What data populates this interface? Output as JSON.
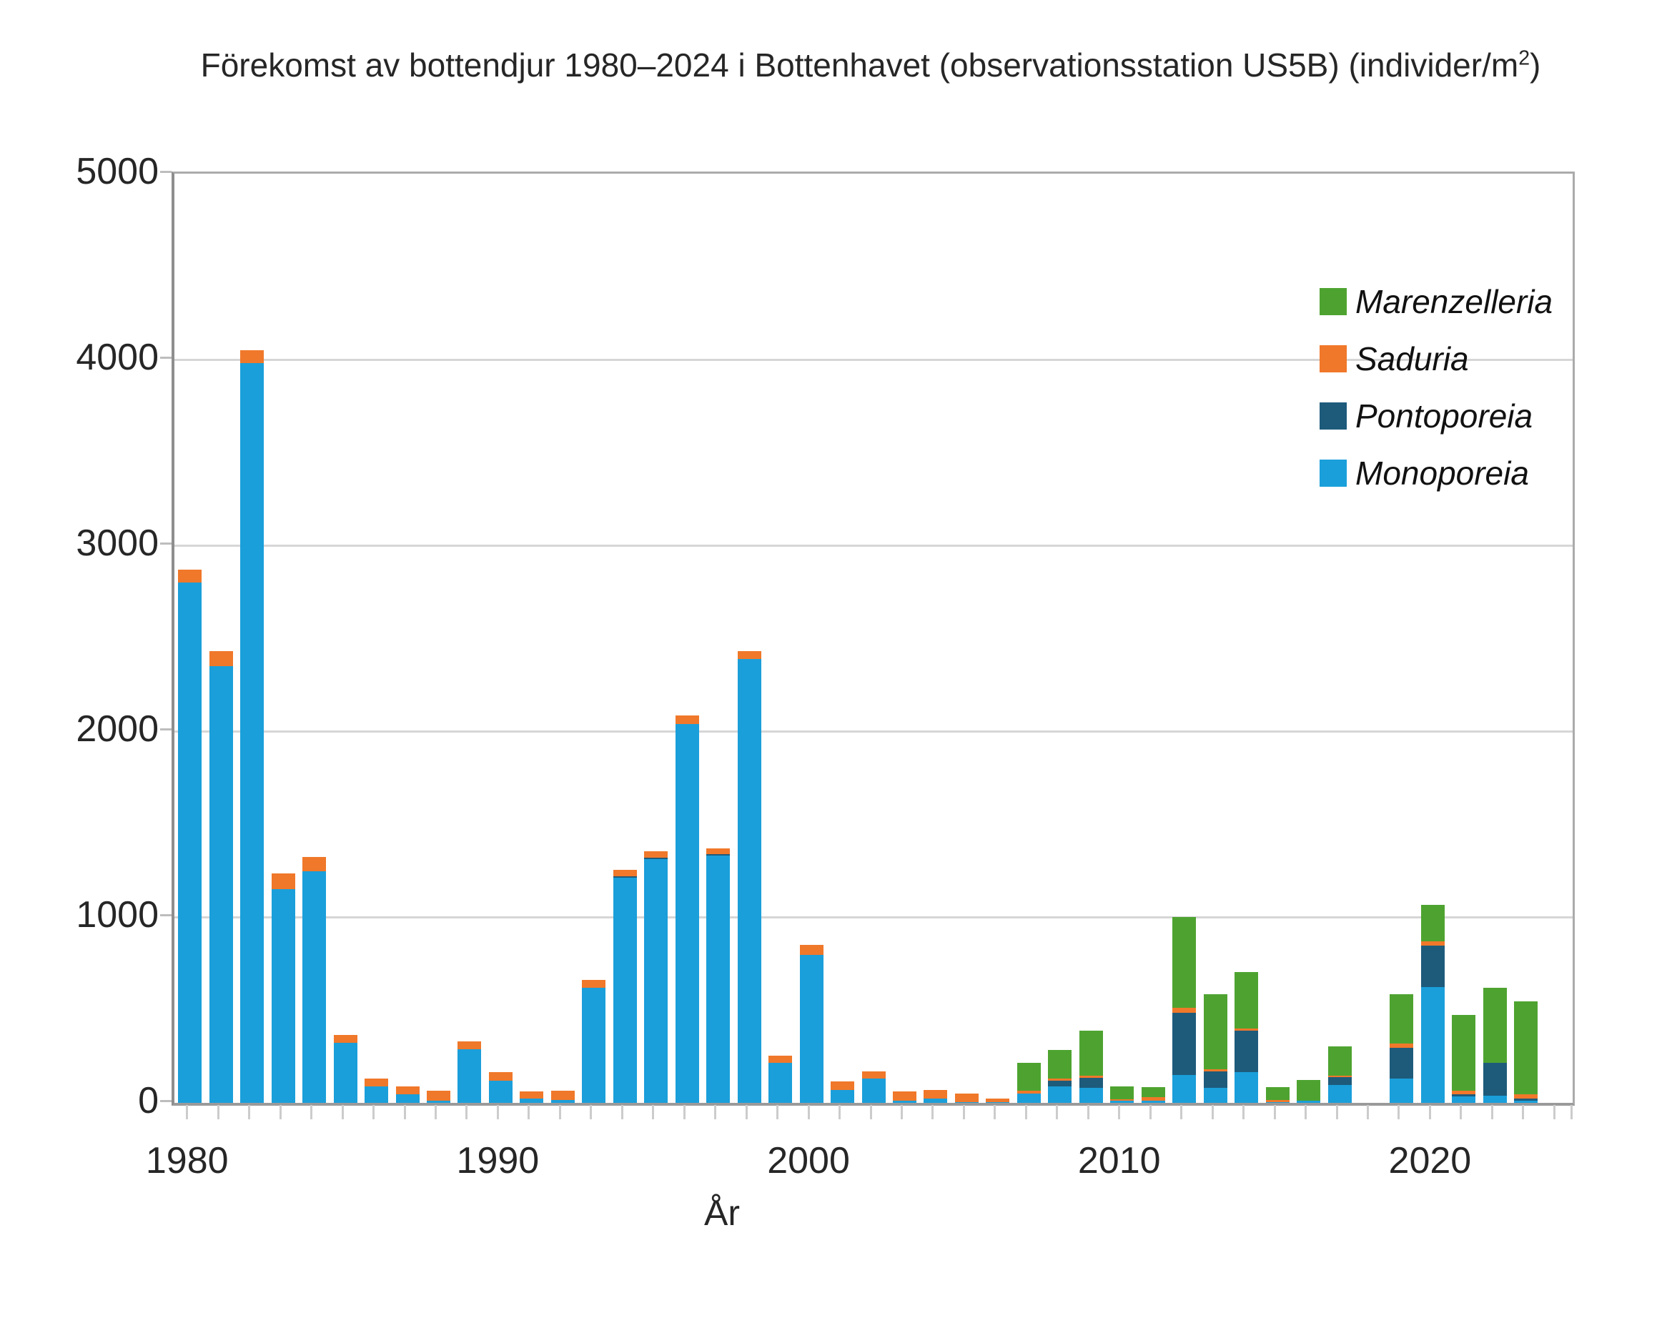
{
  "title": {
    "prefix": "Förekomst av bottendjur 1980–2024 i Bottenhavet (observationsstation US5B) (individer/m",
    "sup": "2",
    "suffix": ")"
  },
  "chart_data": {
    "type": "bar",
    "stacked": true,
    "title": "Förekomst av bottendjur 1980–2024 i Bottenhavet (observationsstation US5B) (individer/m2)",
    "xlabel": "År",
    "ylabel": "",
    "ylim": [
      0,
      5000
    ],
    "y_ticks": [
      0,
      1000,
      2000,
      3000,
      4000,
      5000
    ],
    "x_tick_labels": [
      "1980",
      "1990",
      "2000",
      "2010",
      "2020"
    ],
    "grid": "horizontal",
    "legend_position": "inside-top-right",
    "categories": [
      1980,
      1981,
      1982,
      1983,
      1984,
      1985,
      1986,
      1987,
      1988,
      1989,
      1990,
      1991,
      1992,
      1993,
      1994,
      1995,
      1996,
      1997,
      1998,
      1999,
      2000,
      2001,
      2002,
      2003,
      2004,
      2005,
      2006,
      2007,
      2008,
      2009,
      2010,
      2011,
      2012,
      2013,
      2014,
      2015,
      2016,
      2017,
      2018,
      2019,
      2020,
      2021,
      2022,
      2023,
      2024
    ],
    "series": [
      {
        "name": "Monoporeia",
        "color": "#1A9FDA",
        "values": [
          2800,
          2350,
          3980,
          1150,
          1245,
          325,
          90,
          45,
          10,
          290,
          120,
          25,
          15,
          620,
          1210,
          1310,
          2040,
          1330,
          2390,
          215,
          795,
          70,
          130,
          10,
          25,
          5,
          5,
          50,
          90,
          80,
          10,
          10,
          150,
          80,
          165,
          5,
          10,
          95,
          0,
          130,
          625,
          35,
          40,
          10,
          0
        ]
      },
      {
        "name": "Pontoporeia",
        "color": "#1E5B7B",
        "values": [
          0,
          0,
          0,
          0,
          0,
          0,
          0,
          0,
          0,
          0,
          0,
          0,
          0,
          0,
          10,
          10,
          0,
          10,
          0,
          0,
          0,
          0,
          0,
          0,
          0,
          0,
          0,
          0,
          30,
          55,
          0,
          0,
          335,
          90,
          225,
          0,
          0,
          45,
          0,
          165,
          220,
          10,
          175,
          15,
          0
        ]
      },
      {
        "name": "Saduria",
        "color": "#F0782A",
        "values": [
          70,
          80,
          70,
          85,
          80,
          40,
          40,
          45,
          55,
          40,
          45,
          35,
          50,
          40,
          35,
          35,
          45,
          30,
          40,
          40,
          55,
          45,
          40,
          50,
          45,
          45,
          20,
          15,
          10,
          10,
          10,
          20,
          25,
          10,
          10,
          10,
          0,
          5,
          0,
          25,
          25,
          20,
          0,
          20,
          0
        ]
      },
      {
        "name": "Marenzelleria",
        "color": "#4EA330",
        "values": [
          0,
          0,
          0,
          0,
          0,
          0,
          0,
          0,
          0,
          0,
          0,
          0,
          0,
          0,
          0,
          0,
          0,
          0,
          0,
          0,
          0,
          0,
          0,
          0,
          0,
          0,
          0,
          150,
          155,
          245,
          70,
          55,
          490,
          405,
          305,
          70,
          115,
          160,
          0,
          265,
          195,
          410,
          405,
          500,
          0
        ]
      }
    ],
    "legend": [
      {
        "label": "Marenzelleria",
        "color": "#4EA330"
      },
      {
        "label": "Saduria",
        "color": "#F0782A"
      },
      {
        "label": "Pontoporeia",
        "color": "#1E5B7B"
      },
      {
        "label": "Monoporeia",
        "color": "#1A9FDA"
      }
    ]
  }
}
